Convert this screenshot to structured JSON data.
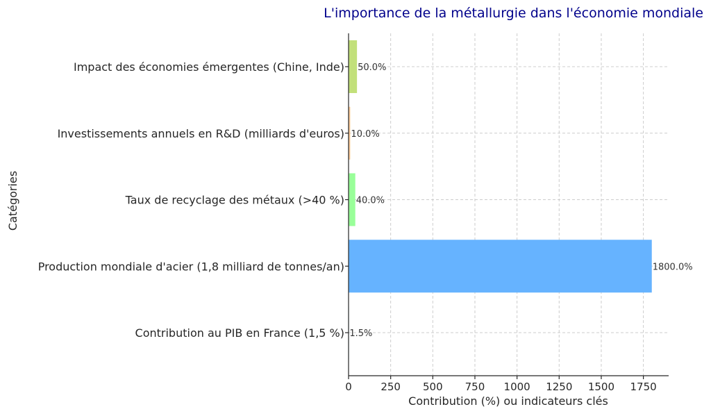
{
  "chart_data": {
    "type": "bar",
    "orientation": "horizontal",
    "title": "L'importance de la métallurgie dans l'économie mondiale",
    "title_color": "#00008b",
    "xlabel": "Contribution (%) ou indicateurs clés",
    "ylabel": "Catégories",
    "xlim": [
      0,
      1900
    ],
    "x_ticks": [
      0,
      250,
      500,
      750,
      1000,
      1250,
      1500,
      1750
    ],
    "grid": true,
    "categories": [
      "Contribution au PIB en France (1,5 %)",
      "Production mondiale d'acier (1,8 milliard de tonnes/an)",
      "Taux de recyclage des métaux (>40 %)",
      "Investissements annuels en R&D (milliards d'euros)",
      "Impact des économies émergentes (Chine, Inde)"
    ],
    "values": [
      1.5,
      1800,
      40,
      10,
      50
    ],
    "data_labels": [
      "1.5%",
      "1800.0%",
      "40.0%",
      "10.0%",
      "50.0%"
    ],
    "colors": [
      "#add8e6",
      "#66b3ff",
      "#99ff99",
      "#ffcc99",
      "#c2e07a"
    ]
  }
}
